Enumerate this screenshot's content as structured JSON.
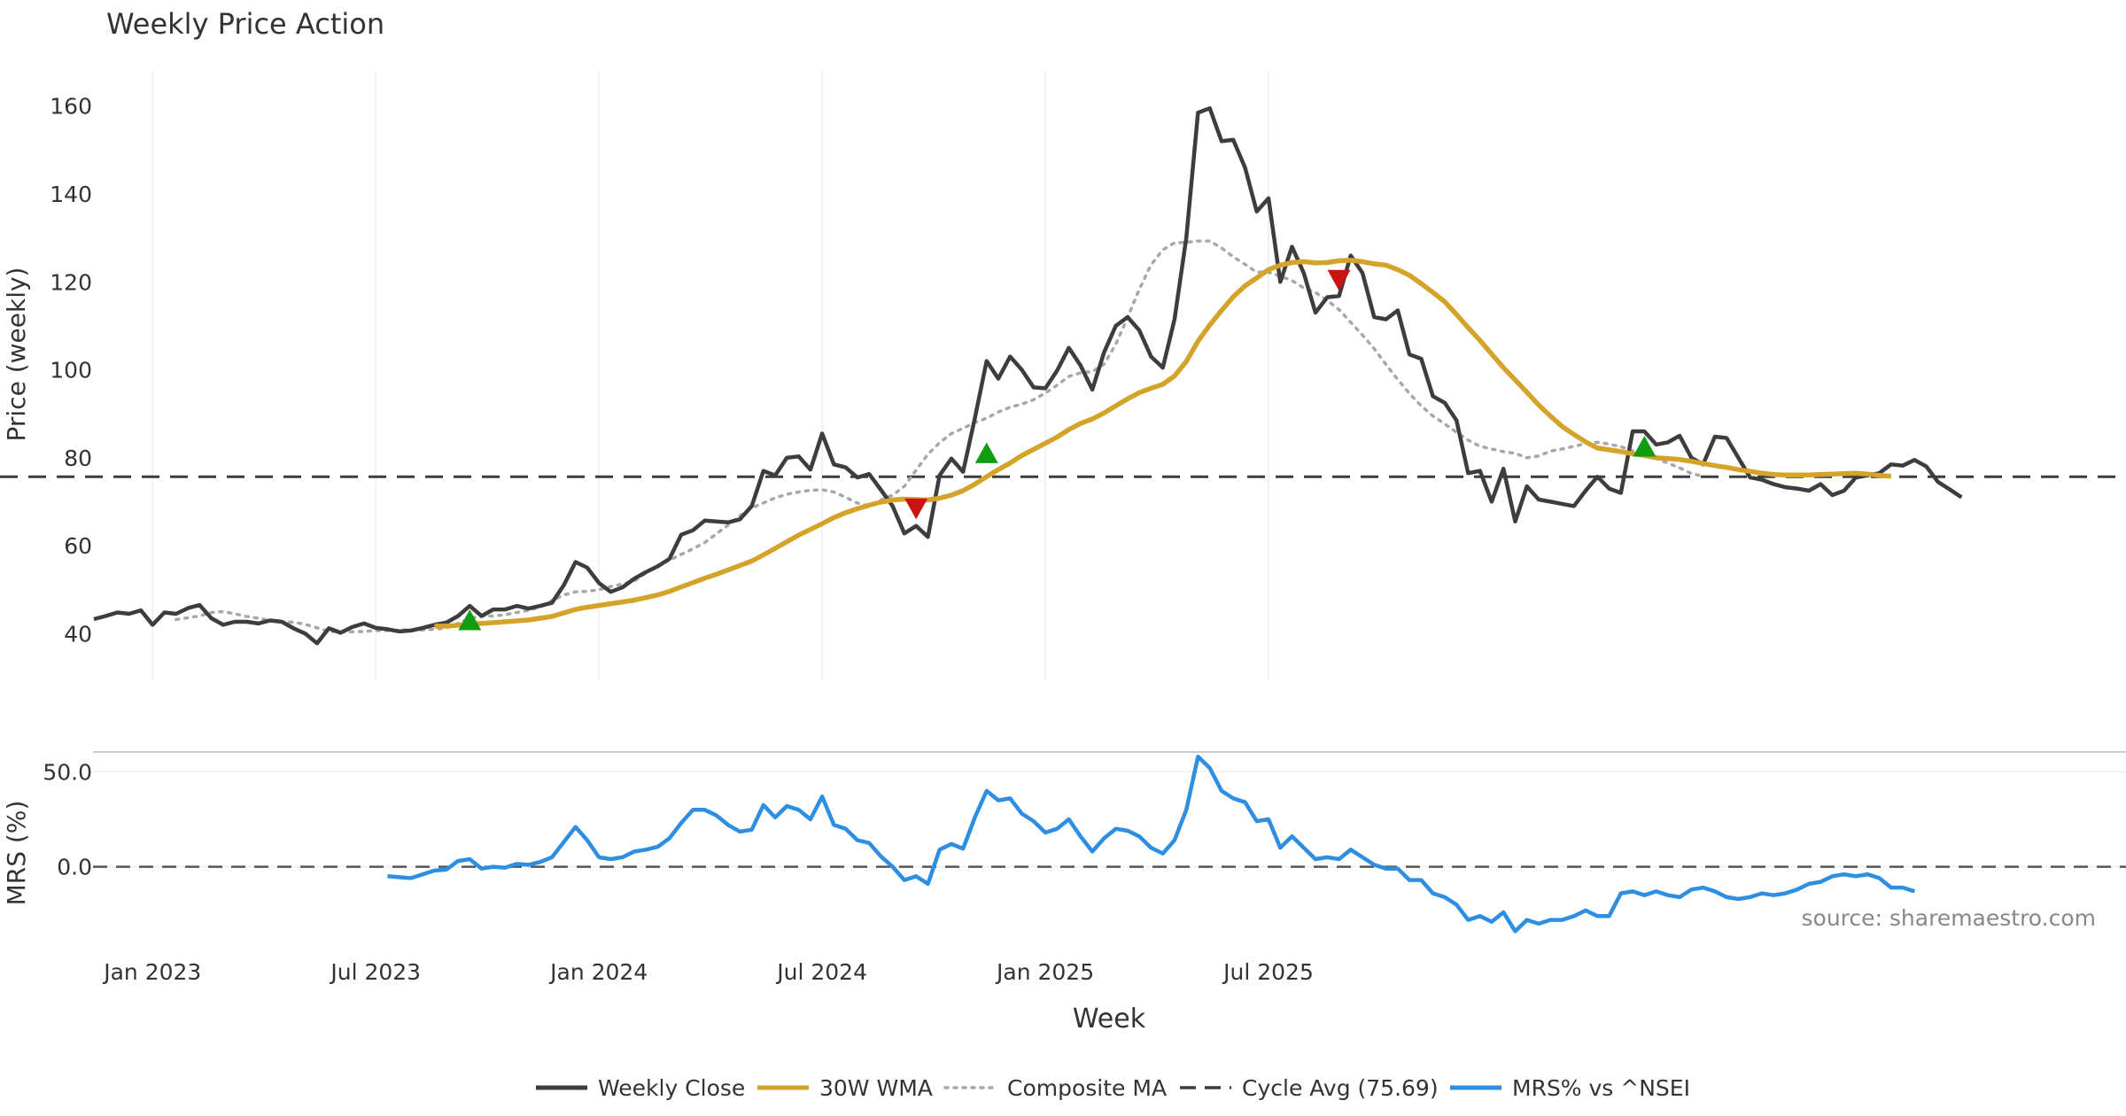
{
  "chart_data": {
    "type": "line",
    "title": "Weekly Price Action",
    "source_note": "source: sharemaestro.com",
    "x_axis": {
      "label": "Week",
      "ticks": [
        "Jan 2023",
        "Jul 2023",
        "Jan 2024",
        "Jul 2024",
        "Jan 2025",
        "Jul 2025"
      ]
    },
    "price_panel": {
      "ylabel": "Price (weekly)",
      "ylim": [
        30,
        168
      ],
      "yticks": [
        40,
        60,
        80,
        100,
        120,
        140,
        160
      ],
      "cycle_avg": 75.69,
      "weekly_close": [
        43.3,
        44.0,
        44.8,
        44.5,
        45.3,
        42.0,
        44.8,
        44.5,
        45.8,
        46.5,
        43.5,
        42.0,
        42.7,
        42.7,
        42.3,
        43.0,
        42.7,
        41.2,
        40.0,
        37.8,
        41.2,
        40.2,
        41.5,
        42.3,
        41.3,
        41.0,
        40.5,
        40.7,
        41.3,
        42.0,
        42.5,
        44.0,
        46.3,
        44.0,
        45.5,
        45.5,
        46.3,
        45.7,
        46.3,
        47.0,
        51.0,
        56.3,
        55.0,
        51.5,
        49.5,
        50.5,
        52.5,
        54.0,
        55.3,
        57.0,
        62.5,
        63.5,
        65.7,
        65.5,
        65.3,
        66.0,
        69.0,
        77.0,
        76.0,
        80.0,
        80.3,
        77.3,
        85.5,
        78.5,
        77.8,
        75.5,
        76.3,
        72.7,
        69.0,
        62.8,
        64.5,
        62.0,
        76.0,
        79.8,
        76.8,
        89.0,
        102.0,
        98.0,
        103.0,
        100.0,
        96.0,
        95.8,
        99.8,
        105.0,
        101.0,
        95.5,
        104.0,
        110.0,
        112.0,
        109.0,
        103.0,
        100.5,
        111.5,
        130.0,
        158.5,
        159.5,
        152.0,
        152.3,
        146.0,
        136.0,
        139.0,
        120.0,
        128.0,
        122.0,
        113.0,
        116.5,
        116.8,
        126.0,
        122.0,
        112.0,
        111.5,
        113.5,
        103.5,
        102.5,
        94.0,
        92.5,
        88.5,
        76.5,
        77.0,
        70.0,
        77.5,
        65.5,
        73.5,
        70.5,
        70.0,
        69.5,
        69.0,
        72.5,
        75.7,
        73.0,
        72.0,
        86.0,
        86.0,
        83.0,
        83.5,
        85.0,
        80.0,
        78.5,
        84.8,
        84.5,
        80.0,
        75.5,
        75.0,
        74.0,
        73.3,
        73.0,
        72.5,
        74.0,
        71.5,
        72.5,
        75.5,
        76.0,
        76.5,
        78.5,
        78.2,
        79.5,
        78.0,
        74.5,
        72.8,
        71.0
      ],
      "wma30_start_index": 29,
      "wma30": [
        41.7,
        41.7,
        41.9,
        42.2,
        42.3,
        42.5,
        42.7,
        42.9,
        43.1,
        43.5,
        43.9,
        44.7,
        45.5,
        46.0,
        46.4,
        46.8,
        47.2,
        47.6,
        48.2,
        48.8,
        49.6,
        50.6,
        51.6,
        52.6,
        53.5,
        54.5,
        55.5,
        56.5,
        57.9,
        59.4,
        60.9,
        62.4,
        63.7,
        65.0,
        66.4,
        67.5,
        68.4,
        69.2,
        69.9,
        70.4,
        70.6,
        70.5,
        70.4,
        70.8,
        71.5,
        72.5,
        74.0,
        75.7,
        77.3,
        78.8,
        80.5,
        81.9,
        83.3,
        84.7,
        86.4,
        87.8,
        88.8,
        90.2,
        91.8,
        93.4,
        94.8,
        95.8,
        96.7,
        98.6,
        101.9,
        106.5,
        110.2,
        113.5,
        116.6,
        119.1,
        120.9,
        122.8,
        123.8,
        124.4,
        124.6,
        124.3,
        124.4,
        124.8,
        124.9,
        124.6,
        124.1,
        123.8,
        122.8,
        121.5,
        119.6,
        117.6,
        115.5,
        112.6,
        109.6,
        106.7,
        103.6,
        100.5,
        97.7,
        94.9,
        92.0,
        89.5,
        87.1,
        85.3,
        83.6,
        82.2,
        81.8,
        81.4,
        80.9,
        80.5,
        80.0,
        79.8,
        79.6,
        79.2,
        78.7,
        78.2,
        77.8,
        77.3,
        76.9,
        76.5,
        76.2,
        76.1,
        76.1,
        76.1,
        76.2,
        76.3,
        76.4,
        76.5,
        76.3,
        76.0,
        75.8
      ],
      "composite_ma_start_index": 7,
      "composite_ma": [
        43.2,
        43.6,
        44.0,
        44.8,
        45.0,
        44.5,
        43.9,
        43.5,
        43.0,
        42.7,
        42.6,
        42.1,
        41.3,
        40.5,
        40.4,
        40.4,
        40.5,
        40.7,
        40.7,
        40.8,
        40.9,
        40.8,
        41.0,
        41.3,
        42.3,
        43.5,
        44.0,
        44.0,
        44.3,
        44.8,
        45.3,
        46.1,
        47.5,
        48.8,
        49.5,
        49.6,
        50.0,
        50.7,
        51.3,
        52.0,
        53.8,
        55.5,
        56.7,
        58.0,
        59.3,
        60.7,
        62.7,
        64.7,
        66.8,
        68.6,
        69.7,
        70.9,
        71.7,
        72.2,
        72.6,
        72.7,
        72.2,
        71.0,
        69.7,
        69.0,
        70.4,
        71.5,
        73.5,
        77.2,
        80.8,
        83.4,
        85.5,
        86.7,
        88.0,
        89.0,
        90.4,
        91.5,
        92.2,
        93.2,
        94.7,
        96.5,
        98.5,
        99.3,
        99.6,
        101.3,
        105.8,
        111.9,
        118.3,
        123.9,
        127.3,
        128.9,
        129.0,
        129.3,
        129.3,
        127.7,
        125.7,
        124.0,
        122.2,
        122.2,
        121.3,
        120.3,
        118.6,
        117.6,
        115.8,
        113.7,
        110.8,
        107.9,
        104.8,
        101.2,
        97.8,
        94.6,
        91.8,
        89.5,
        87.7,
        85.8,
        84.0,
        82.6,
        82.0,
        81.4,
        81.0,
        80.0,
        80.4,
        81.5,
        82.0,
        82.6,
        83.2,
        83.5,
        83.1,
        82.5,
        81.6,
        80.7,
        79.8,
        78.8,
        77.7,
        76.4,
        75.8
      ]
    },
    "signals": {
      "buy": [
        {
          "i": 32,
          "price": 43.0
        },
        {
          "i": 76,
          "price": 81.0
        },
        {
          "i": 132,
          "price": 82.5
        }
      ],
      "sell": [
        {
          "i": 70,
          "price": 68.5
        },
        {
          "i": 106,
          "price": 120.5
        }
      ]
    },
    "mrs_panel": {
      "ylabel": "MRS (%)",
      "ylim": [
        -38,
        60
      ],
      "yticks": [
        50,
        0
      ],
      "ytick_labels": [
        "50.0",
        "0.0"
      ],
      "zero_line": 0,
      "start_index": 25,
      "values": [
        -5,
        -5.5,
        -6,
        -4,
        -2,
        -1.5,
        3,
        4,
        -1,
        0,
        -0.5,
        1.5,
        1,
        2.5,
        5,
        13,
        21,
        14,
        5,
        4,
        5,
        8,
        9,
        10.5,
        15,
        23,
        30,
        30,
        27,
        22,
        18.5,
        19.5,
        32.5,
        26,
        32,
        30,
        25,
        37,
        22,
        20,
        14,
        12.5,
        5.5,
        0,
        -7,
        -5,
        -9,
        9,
        12,
        9.5,
        26,
        40,
        35,
        36,
        28,
        24,
        18,
        20,
        25,
        16,
        8,
        15,
        20,
        19,
        16,
        10,
        7,
        14,
        30,
        58,
        52,
        40,
        36,
        34,
        24,
        25,
        10,
        16,
        10,
        4,
        5,
        4,
        9,
        5,
        1,
        -1,
        -1,
        -7,
        -7,
        -14,
        -16,
        -20,
        -28,
        -26,
        -29,
        -24,
        -34,
        -28,
        -30,
        -28,
        -28,
        -26,
        -23,
        -26,
        -26,
        -14,
        -13,
        -15,
        -13,
        -15,
        -16,
        -12,
        -11,
        -13,
        -16,
        -17,
        -16,
        -14,
        -15,
        -14,
        -12,
        -9,
        -8,
        -5,
        -4,
        -5,
        -4,
        -6,
        -11,
        -11,
        -13
      ]
    },
    "legend": {
      "placement": "bottom-center",
      "items": [
        {
          "label": "Weekly Close",
          "color": "#3d3d3d",
          "style": "solid"
        },
        {
          "label": "30W WMA",
          "color": "#d4a32a",
          "style": "solid"
        },
        {
          "label": "Composite MA",
          "color": "#a8a8a8",
          "style": "dotted"
        },
        {
          "label": "Cycle Avg (75.69)",
          "color": "#3d3d3d",
          "style": "dashed"
        },
        {
          "label": "MRS% vs ^NSEI",
          "color": "#2e8fe2",
          "style": "solid"
        }
      ]
    },
    "colors": {
      "close": "#3d3d3d",
      "wma": "#d4a32a",
      "composite": "#a8a8a8",
      "cycle": "#3d3d3d",
      "mrs": "#2e8fe2",
      "buy": "#129c12",
      "sell": "#cc1111",
      "grid": "#e8f1ee",
      "source": "#888888"
    }
  }
}
